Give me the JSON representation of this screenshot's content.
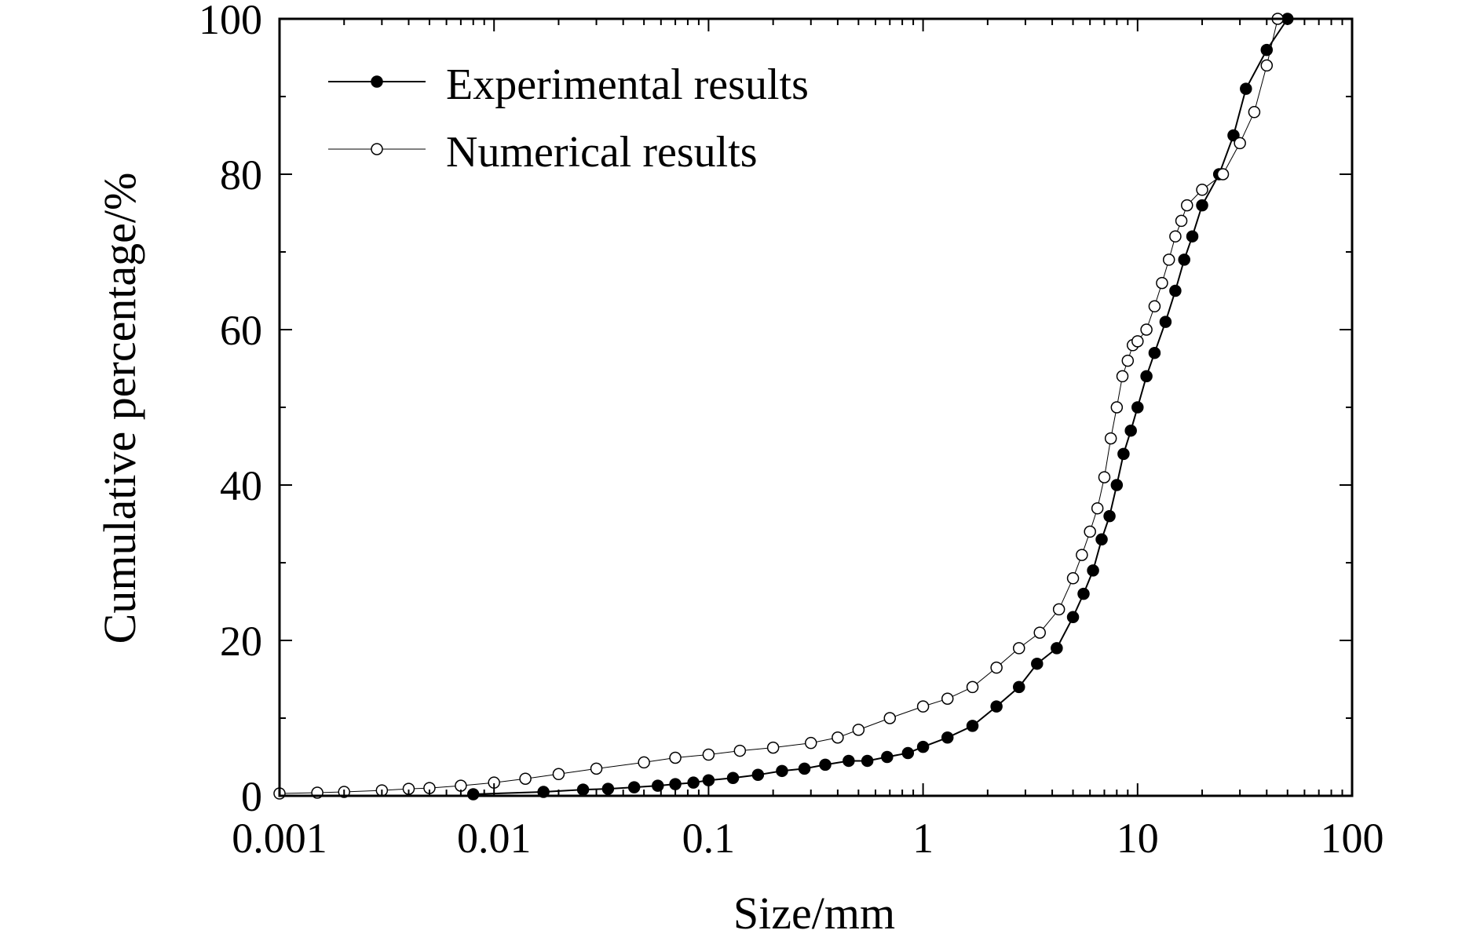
{
  "chart_data": {
    "type": "scatter",
    "title": "",
    "xlabel": "Size/mm",
    "ylabel": "Cumulative percentage/%",
    "x_scale": "log",
    "xlim": [
      0.001,
      100
    ],
    "ylim": [
      0,
      100
    ],
    "x_ticks": [
      0.001,
      0.01,
      0.1,
      1,
      10,
      100
    ],
    "x_tick_labels": [
      "0.001",
      "0.01",
      "0.1",
      "1",
      "10",
      "100"
    ],
    "y_ticks": [
      0,
      20,
      40,
      60,
      80,
      100
    ],
    "y_tick_labels": [
      "0",
      "20",
      "40",
      "60",
      "80",
      "100"
    ],
    "grid": false,
    "legend_position": "top-left",
    "series": [
      {
        "name": "Experimental results",
        "marker": "filled-circle",
        "color": "#000000",
        "x": [
          0.008,
          0.017,
          0.026,
          0.034,
          0.045,
          0.058,
          0.07,
          0.085,
          0.1,
          0.13,
          0.17,
          0.22,
          0.28,
          0.35,
          0.45,
          0.55,
          0.68,
          0.85,
          1.0,
          1.3,
          1.7,
          2.2,
          2.8,
          3.4,
          4.2,
          5.0,
          5.6,
          6.2,
          6.8,
          7.4,
          8.0,
          8.6,
          9.3,
          10.0,
          11.0,
          12.0,
          13.5,
          15.0,
          16.5,
          18.0,
          20.0,
          24.0,
          28.0,
          32.0,
          40.0,
          50.0
        ],
        "y": [
          0.2,
          0.5,
          0.8,
          0.9,
          1.1,
          1.3,
          1.5,
          1.7,
          2.0,
          2.3,
          2.7,
          3.2,
          3.5,
          4.0,
          4.5,
          4.5,
          5.0,
          5.5,
          6.3,
          7.5,
          9.0,
          11.5,
          14.0,
          17.0,
          19.0,
          23.0,
          26.0,
          29.0,
          33.0,
          36.0,
          40.0,
          44.0,
          47.0,
          50.0,
          54.0,
          57.0,
          61.0,
          65.0,
          69.0,
          72.0,
          76.0,
          80.0,
          85.0,
          91.0,
          96.0,
          100.0
        ]
      },
      {
        "name": "Numerical results",
        "marker": "open-circle",
        "color": "#000000",
        "x": [
          0.001,
          0.0015,
          0.002,
          0.003,
          0.004,
          0.005,
          0.007,
          0.01,
          0.014,
          0.02,
          0.03,
          0.05,
          0.07,
          0.1,
          0.14,
          0.2,
          0.3,
          0.4,
          0.5,
          0.7,
          1.0,
          1.3,
          1.7,
          2.2,
          2.8,
          3.5,
          4.3,
          5.0,
          5.5,
          6.0,
          6.5,
          7.0,
          7.5,
          8.0,
          8.5,
          9.0,
          9.5,
          10.0,
          11.0,
          12.0,
          13.0,
          14.0,
          15.0,
          16.0,
          17.0,
          20.0,
          25.0,
          30.0,
          35.0,
          40.0,
          45.0
        ],
        "y": [
          0.3,
          0.4,
          0.5,
          0.7,
          0.9,
          1.0,
          1.3,
          1.7,
          2.2,
          2.8,
          3.5,
          4.3,
          4.9,
          5.3,
          5.8,
          6.2,
          6.8,
          7.5,
          8.5,
          10.0,
          11.5,
          12.5,
          14.0,
          16.5,
          19.0,
          21.0,
          24.0,
          28.0,
          31.0,
          34.0,
          37.0,
          41.0,
          46.0,
          50.0,
          54.0,
          56.0,
          58.0,
          58.5,
          60.0,
          63.0,
          66.0,
          69.0,
          72.0,
          74.0,
          76.0,
          78.0,
          80.0,
          84.0,
          88.0,
          94.0,
          100.0
        ]
      }
    ]
  }
}
